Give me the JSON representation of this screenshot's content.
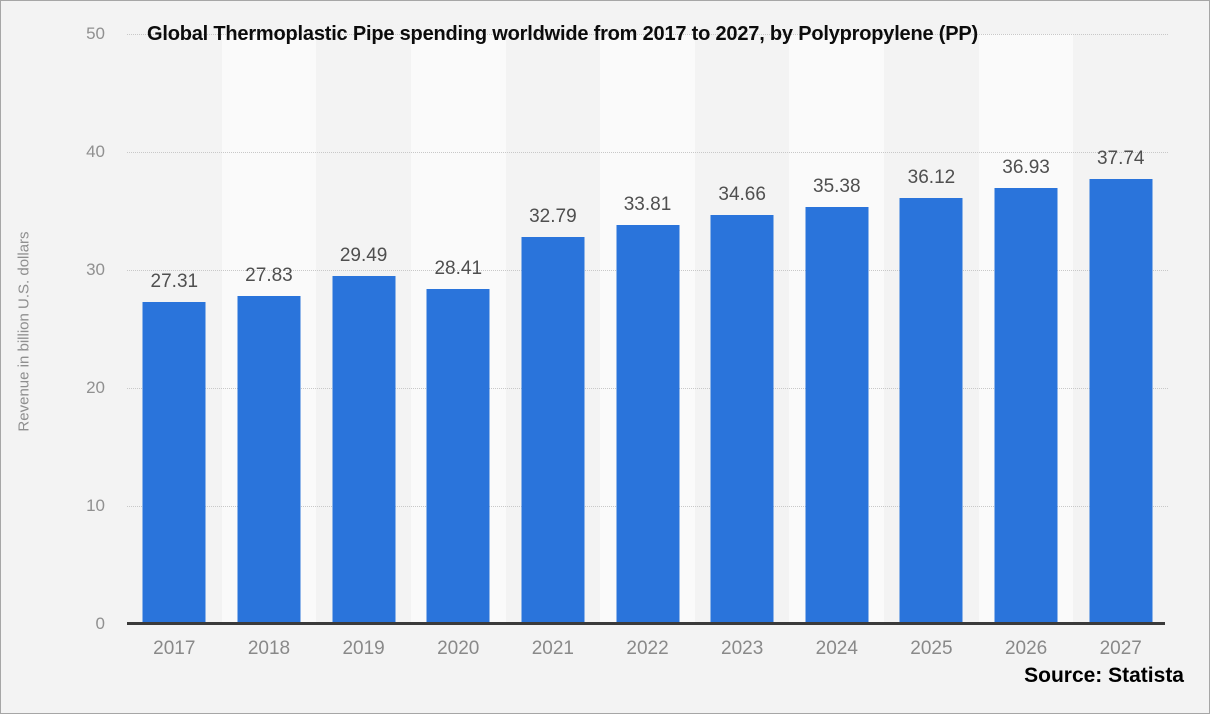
{
  "title": "Global Thermoplastic Pipe spending worldwide from 2017 to 2027, by Polypropylene (PP)",
  "source": "Source: Statista",
  "colors": {
    "bar": "#2a74db",
    "band_light": "#fafafa",
    "background": "#f3f3f3",
    "value_label": "#4f4f4f",
    "tick_label": "#8f8f8f",
    "gridline": "#c8c8c8",
    "axis_line": "#3a3a3a"
  },
  "chart_data": {
    "type": "bar",
    "title": "Global Thermoplastic Pipe spending worldwide from 2017 to 2027, by Polypropylene (PP)",
    "categories": [
      "2017",
      "2018",
      "2019",
      "2020",
      "2021",
      "2022",
      "2023",
      "2024",
      "2025",
      "2026",
      "2027"
    ],
    "values": [
      27.31,
      27.83,
      29.49,
      28.41,
      32.79,
      33.81,
      34.66,
      35.38,
      36.12,
      36.93,
      37.74
    ],
    "value_labels": [
      "27.31",
      "27.83",
      "29.49",
      "28.41",
      "32.79",
      "33.81",
      "34.66",
      "35.38",
      "36.12",
      "36.93",
      "37.74"
    ],
    "xlabel": "",
    "ylabel": "Revenue in billion U.S. dollars",
    "ylim": [
      0,
      50
    ],
    "yticks": [
      0,
      10,
      20,
      30,
      40,
      50
    ],
    "grid": "horizontal-dotted",
    "legend": "none",
    "background_bands": "alternating-vertical"
  }
}
